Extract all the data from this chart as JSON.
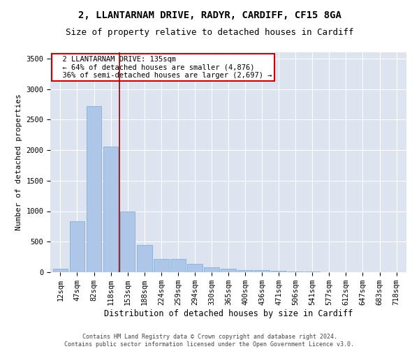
{
  "title": "2, LLANTARNAM DRIVE, RADYR, CARDIFF, CF15 8GA",
  "subtitle": "Size of property relative to detached houses in Cardiff",
  "xlabel": "Distribution of detached houses by size in Cardiff",
  "ylabel": "Number of detached properties",
  "categories": [
    "12sqm",
    "47sqm",
    "82sqm",
    "118sqm",
    "153sqm",
    "188sqm",
    "224sqm",
    "259sqm",
    "294sqm",
    "330sqm",
    "365sqm",
    "400sqm",
    "436sqm",
    "471sqm",
    "506sqm",
    "541sqm",
    "577sqm",
    "612sqm",
    "647sqm",
    "683sqm",
    "718sqm"
  ],
  "values": [
    60,
    840,
    2720,
    2060,
    1000,
    450,
    215,
    215,
    135,
    80,
    55,
    40,
    35,
    20,
    12,
    8,
    5,
    3,
    2,
    2,
    2
  ],
  "bar_color": "#aec6e8",
  "bar_edge_color": "#7aa8cc",
  "vline_x": 3.5,
  "vline_color": "#990000",
  "annotation_text": "  2 LLANTARNAM DRIVE: 135sqm\n  ← 64% of detached houses are smaller (4,876)\n  36% of semi-detached houses are larger (2,697) →",
  "annotation_box_color": "#ffffff",
  "annotation_box_edge_color": "#cc0000",
  "ylim": [
    0,
    3600
  ],
  "yticks": [
    0,
    500,
    1000,
    1500,
    2000,
    2500,
    3000,
    3500
  ],
  "background_color": "#dde4f0",
  "footer_text": "Contains HM Land Registry data © Crown copyright and database right 2024.\nContains public sector information licensed under the Open Government Licence v3.0.",
  "title_fontsize": 10,
  "subtitle_fontsize": 9,
  "xlabel_fontsize": 8.5,
  "ylabel_fontsize": 8,
  "tick_fontsize": 7.5,
  "annotation_fontsize": 7.5,
  "footer_fontsize": 6
}
